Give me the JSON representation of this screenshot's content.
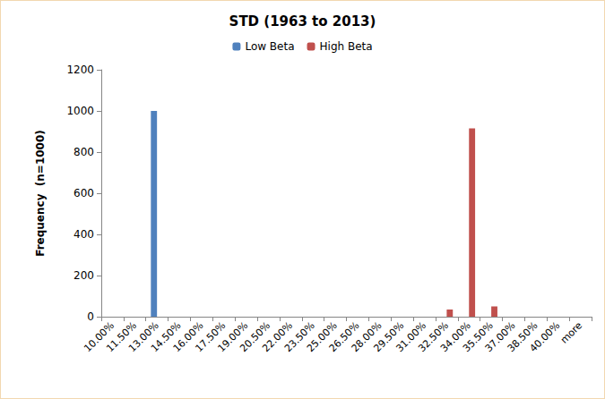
{
  "chart_data": {
    "type": "bar",
    "title": "STD (1963 to 2013)",
    "y_label": "Frequency  (n=1000)",
    "categories": [
      "10.00%",
      "11.50%",
      "13.00%",
      "14.50%",
      "16.00%",
      "17.50%",
      "19.00%",
      "20.50%",
      "22.00%",
      "23.50%",
      "25.00%",
      "26.50%",
      "28.00%",
      "29.50%",
      "31.00%",
      "32.50%",
      "34.00%",
      "35.50%",
      "37.00%",
      "38.50%",
      "40.00%",
      "more"
    ],
    "series": [
      {
        "name": "Low Beta",
        "color": "#4f81bd",
        "values": [
          0,
          0,
          1000,
          0,
          0,
          0,
          0,
          0,
          0,
          0,
          0,
          0,
          0,
          0,
          0,
          0,
          0,
          0,
          0,
          0,
          0,
          0
        ]
      },
      {
        "name": "High Beta",
        "color": "#c0504d",
        "values": [
          0,
          0,
          0,
          0,
          0,
          0,
          0,
          0,
          0,
          0,
          0,
          0,
          0,
          0,
          0,
          35,
          915,
          50,
          0,
          0,
          0,
          0
        ]
      }
    ],
    "ylim": [
      0,
      1200
    ],
    "yticks": [
      0,
      200,
      400,
      600,
      800,
      1000,
      1200
    ],
    "grid": false,
    "legend": "top"
  }
}
